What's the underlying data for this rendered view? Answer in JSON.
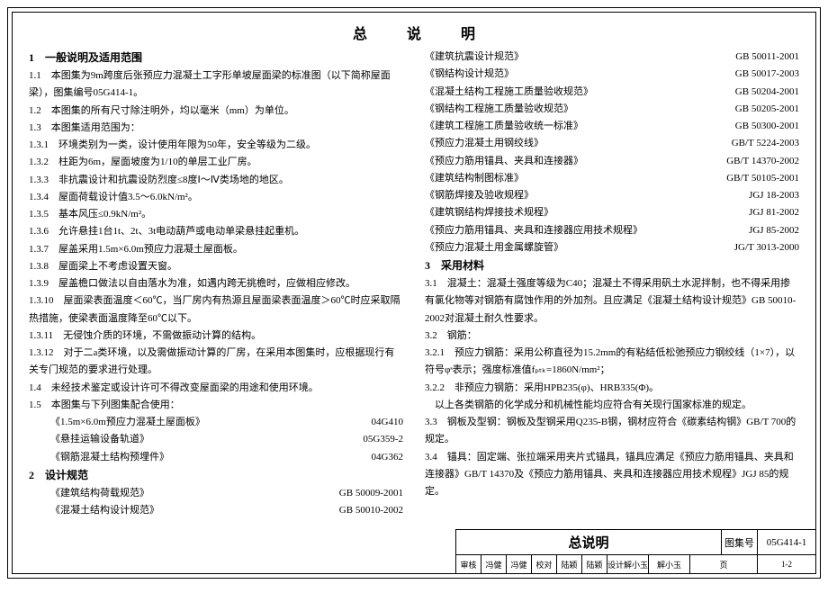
{
  "title": "总 说 明",
  "left": {
    "sec1_title": "1　一般说明及适用范围",
    "items": [
      "1.1　本图集为9m跨度后张预应力混凝土工字形单坡屋面梁的标准图（以下简称屋面梁），图集编号05G414-1。",
      "1.2　本图集的所有尺寸除注明外，均以毫米（mm）为单位。",
      "1.3　本图集适用范围为：",
      "1.3.1　环境类别为一类，设计使用年限为50年，安全等级为二级。",
      "1.3.2　柱距为6m，屋面坡度为1/10的单层工业厂房。",
      "1.3.3　非抗震设计和抗震设防烈度≤8度Ⅰ～Ⅳ类场地的地区。",
      "1.3.4　屋面荷载设计值3.5～6.0kN/m²。",
      "1.3.5　基本风压≤0.9kN/m²。",
      "1.3.6　允许悬挂1台1t、2t、3t电动葫芦或电动单梁悬挂起重机。",
      "1.3.7　屋盖采用1.5m×6.0m预应力混凝土屋面板。",
      "1.3.8　屋面梁上不考虑设置天窗。",
      "1.3.9　屋盖檐口做法以自由落水为准，如遇内跨无挑檐时，应做相应修改。",
      "1.3.10　屋面梁表面温度＜60℃，当厂房内有热源且屋面梁表面温度＞60℃时应采取隔热措施，使梁表面温度降至60℃以下。",
      "1.3.11　无侵蚀介质的环境，不需做振动计算的结构。",
      "1.3.12　对于二a类环境，以及需做振动计算的厂房，在采用本图集时，应根据现行有关专门规范的要求进行处理。",
      "1.4　未经技术鉴定或设计许可不得改变屋面梁的用途和使用环境。",
      "1.5　本图集与下列图集配合使用："
    ],
    "refs": [
      {
        "name": "《1.5m×6.0m预应力混凝土屋面板》",
        "code": "04G410"
      },
      {
        "name": "《悬挂运输设备轨道》",
        "code": "05G359-2"
      },
      {
        "name": "《钢筋混凝土结构预埋件》",
        "code": "04G362"
      }
    ],
    "sec2_title": "2　设计规范",
    "refs2": [
      {
        "name": "《建筑结构荷载规范》",
        "code": "GB 50009-2001"
      },
      {
        "name": "《混凝土结构设计规范》",
        "code": "GB 50010-2002"
      }
    ]
  },
  "right": {
    "stds": [
      {
        "name": "《建筑抗震设计规范》",
        "code": "GB 50011-2001"
      },
      {
        "name": "《钢结构设计规范》",
        "code": "GB 50017-2003"
      },
      {
        "name": "《混凝土结构工程施工质量验收规范》",
        "code": "GB 50204-2001"
      },
      {
        "name": "《钢结构工程施工质量验收规范》",
        "code": "GB 50205-2001"
      },
      {
        "name": "《建筑工程施工质量验收统一标准》",
        "code": "GB 50300-2001"
      },
      {
        "name": "《预应力混凝土用钢绞线》",
        "code": "GB/T 5224-2003"
      },
      {
        "name": "《预应力筋用锚具、夹具和连接器》",
        "code": "GB/T 14370-2002"
      },
      {
        "name": "《建筑结构制图标准》",
        "code": "GB/T 50105-2001"
      },
      {
        "name": "《钢筋焊接及验收规程》",
        "code": "JGJ 18-2003"
      },
      {
        "name": "《建筑钢结构焊接技术规程》",
        "code": "JGJ 81-2002"
      },
      {
        "name": "《预应力筋用锚具、夹具和连接器应用技术规程》",
        "code": "JGJ 85-2002"
      },
      {
        "name": "《预应力混凝土用金属螺旋管》",
        "code": "JG/T 3013-2000"
      }
    ],
    "sec3_title": "3　采用材料",
    "items3": [
      "3.1　混凝土：混凝土强度等级为C40；混凝土不得采用矾土水泥拌制，也不得采用掺有氯化物等对钢筋有腐蚀作用的外加剂。且应满足《混凝土结构设计规范》GB 50010-2002对混凝土耐久性要求。",
      "3.2　钢筋：",
      "3.2.1　预应力钢筋：采用公称直径为15.2mm的有粘结低松弛预应力钢绞线（1×7），以符号φˢ表示；强度标准值fₚₜₖ=1860N/mm²；",
      "3.2.2　非预应力钢筋：采用HPB235(φ)、HRB335(Φ)。",
      "　以上各类钢筋的化学成分和机械性能均应符合有关现行国家标准的规定。",
      "3.3　钢板及型钢：钢板及型钢采用Q235-B钢，钢材应符合《碳素结构钢》GB/T 700的规定。",
      "3.4　锚具：固定端、张拉端采用夹片式锚具，锚具应满足《预应力筋用锚具、夹具和连接器》GB/T 14370及《预应力筋用锚具、夹具和连接器应用技术规程》JGJ 85的规定。"
    ]
  },
  "footer": {
    "title": "总说明",
    "album_label": "图集号",
    "album_code": "05G414-1",
    "cells": [
      "审核",
      "冯健",
      "冯健",
      "校对",
      "陆颖",
      "陆颖",
      "设计解小玉",
      "解小玉",
      "页"
    ],
    "page": "1-2"
  }
}
